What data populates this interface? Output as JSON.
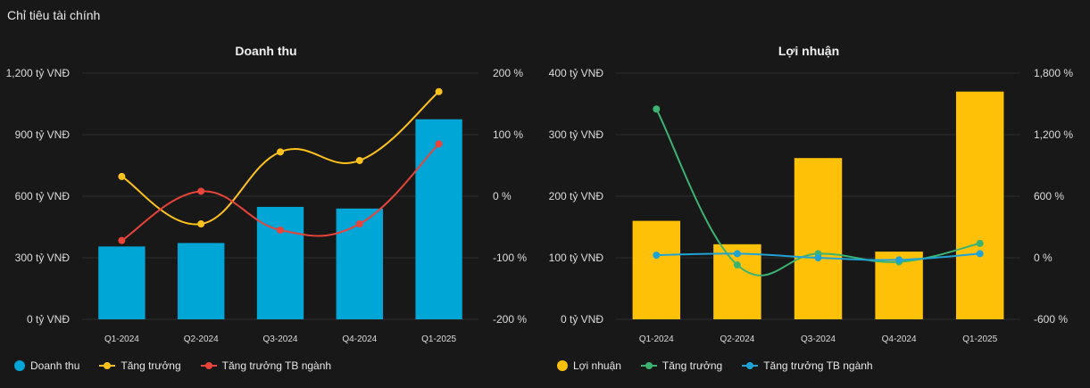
{
  "page_title": "Chỉ tiêu tài chính",
  "colors": {
    "revenue_bar": "#00a6d6",
    "profit_bar": "#ffc107",
    "growth_left": "#ffc21a",
    "industry_left": "#e8443a",
    "growth_right": "#3cb371",
    "industry_right": "#1fa3d4",
    "grid": "#2e2e2e",
    "axis_text": "#dcdcdc"
  },
  "chart_data": [
    {
      "type": "bar",
      "title": "Doanh thu",
      "categories": [
        "Q1-2024",
        "Q2-2024",
        "Q3-2024",
        "Q4-2024",
        "Q1-2025"
      ],
      "y_ticks": [
        "0 tỷ VNĐ",
        "300 tỷ VNĐ",
        "600 tỷ VNĐ",
        "900 tỷ VNĐ",
        "1,200 tỷ VNĐ"
      ],
      "y2_ticks": [
        "-200 %",
        "-100 %",
        "0 %",
        "100 %",
        "200 %"
      ],
      "ylim": [
        0,
        1200
      ],
      "y2lim": [
        -200,
        200
      ],
      "bars": {
        "name": "Doanh thu",
        "values": [
          355,
          372,
          548,
          540,
          975
        ]
      },
      "lines": [
        {
          "name": "Tăng trưởng",
          "values": [
            32,
            -45,
            72,
            58,
            170
          ]
        },
        {
          "name": "Tăng trưởng TB ngành",
          "values": [
            -72,
            8,
            -55,
            -45,
            85
          ]
        }
      ],
      "legend": [
        "Doanh thu",
        "Tăng trưởng",
        "Tăng trưởng TB ngành"
      ]
    },
    {
      "type": "bar",
      "title": "Lợi nhuận",
      "categories": [
        "Q1-2024",
        "Q2-2024",
        "Q3-2024",
        "Q4-2024",
        "Q1-2025"
      ],
      "y_ticks": [
        "0 tỷ VNĐ",
        "100 tỷ VNĐ",
        "200 tỷ VNĐ",
        "300 tỷ VNĐ",
        "400 tỷ VNĐ"
      ],
      "y2_ticks": [
        "-600 %",
        "0 %",
        "600 %",
        "1,200 %",
        "1,800 %"
      ],
      "ylim": [
        0,
        400
      ],
      "y2lim": [
        -600,
        1800
      ],
      "bars": {
        "name": "Lợi nhuận",
        "values": [
          160,
          122,
          262,
          110,
          370
        ]
      },
      "lines": [
        {
          "name": "Tăng trưởng",
          "values": [
            1450,
            -70,
            40,
            -40,
            140
          ]
        },
        {
          "name": "Tăng trưởng TB ngành",
          "values": [
            25,
            40,
            0,
            -20,
            40
          ]
        }
      ],
      "legend": [
        "Lợi nhuận",
        "Tăng trưởng",
        "Tăng trưởng TB ngành"
      ]
    }
  ]
}
